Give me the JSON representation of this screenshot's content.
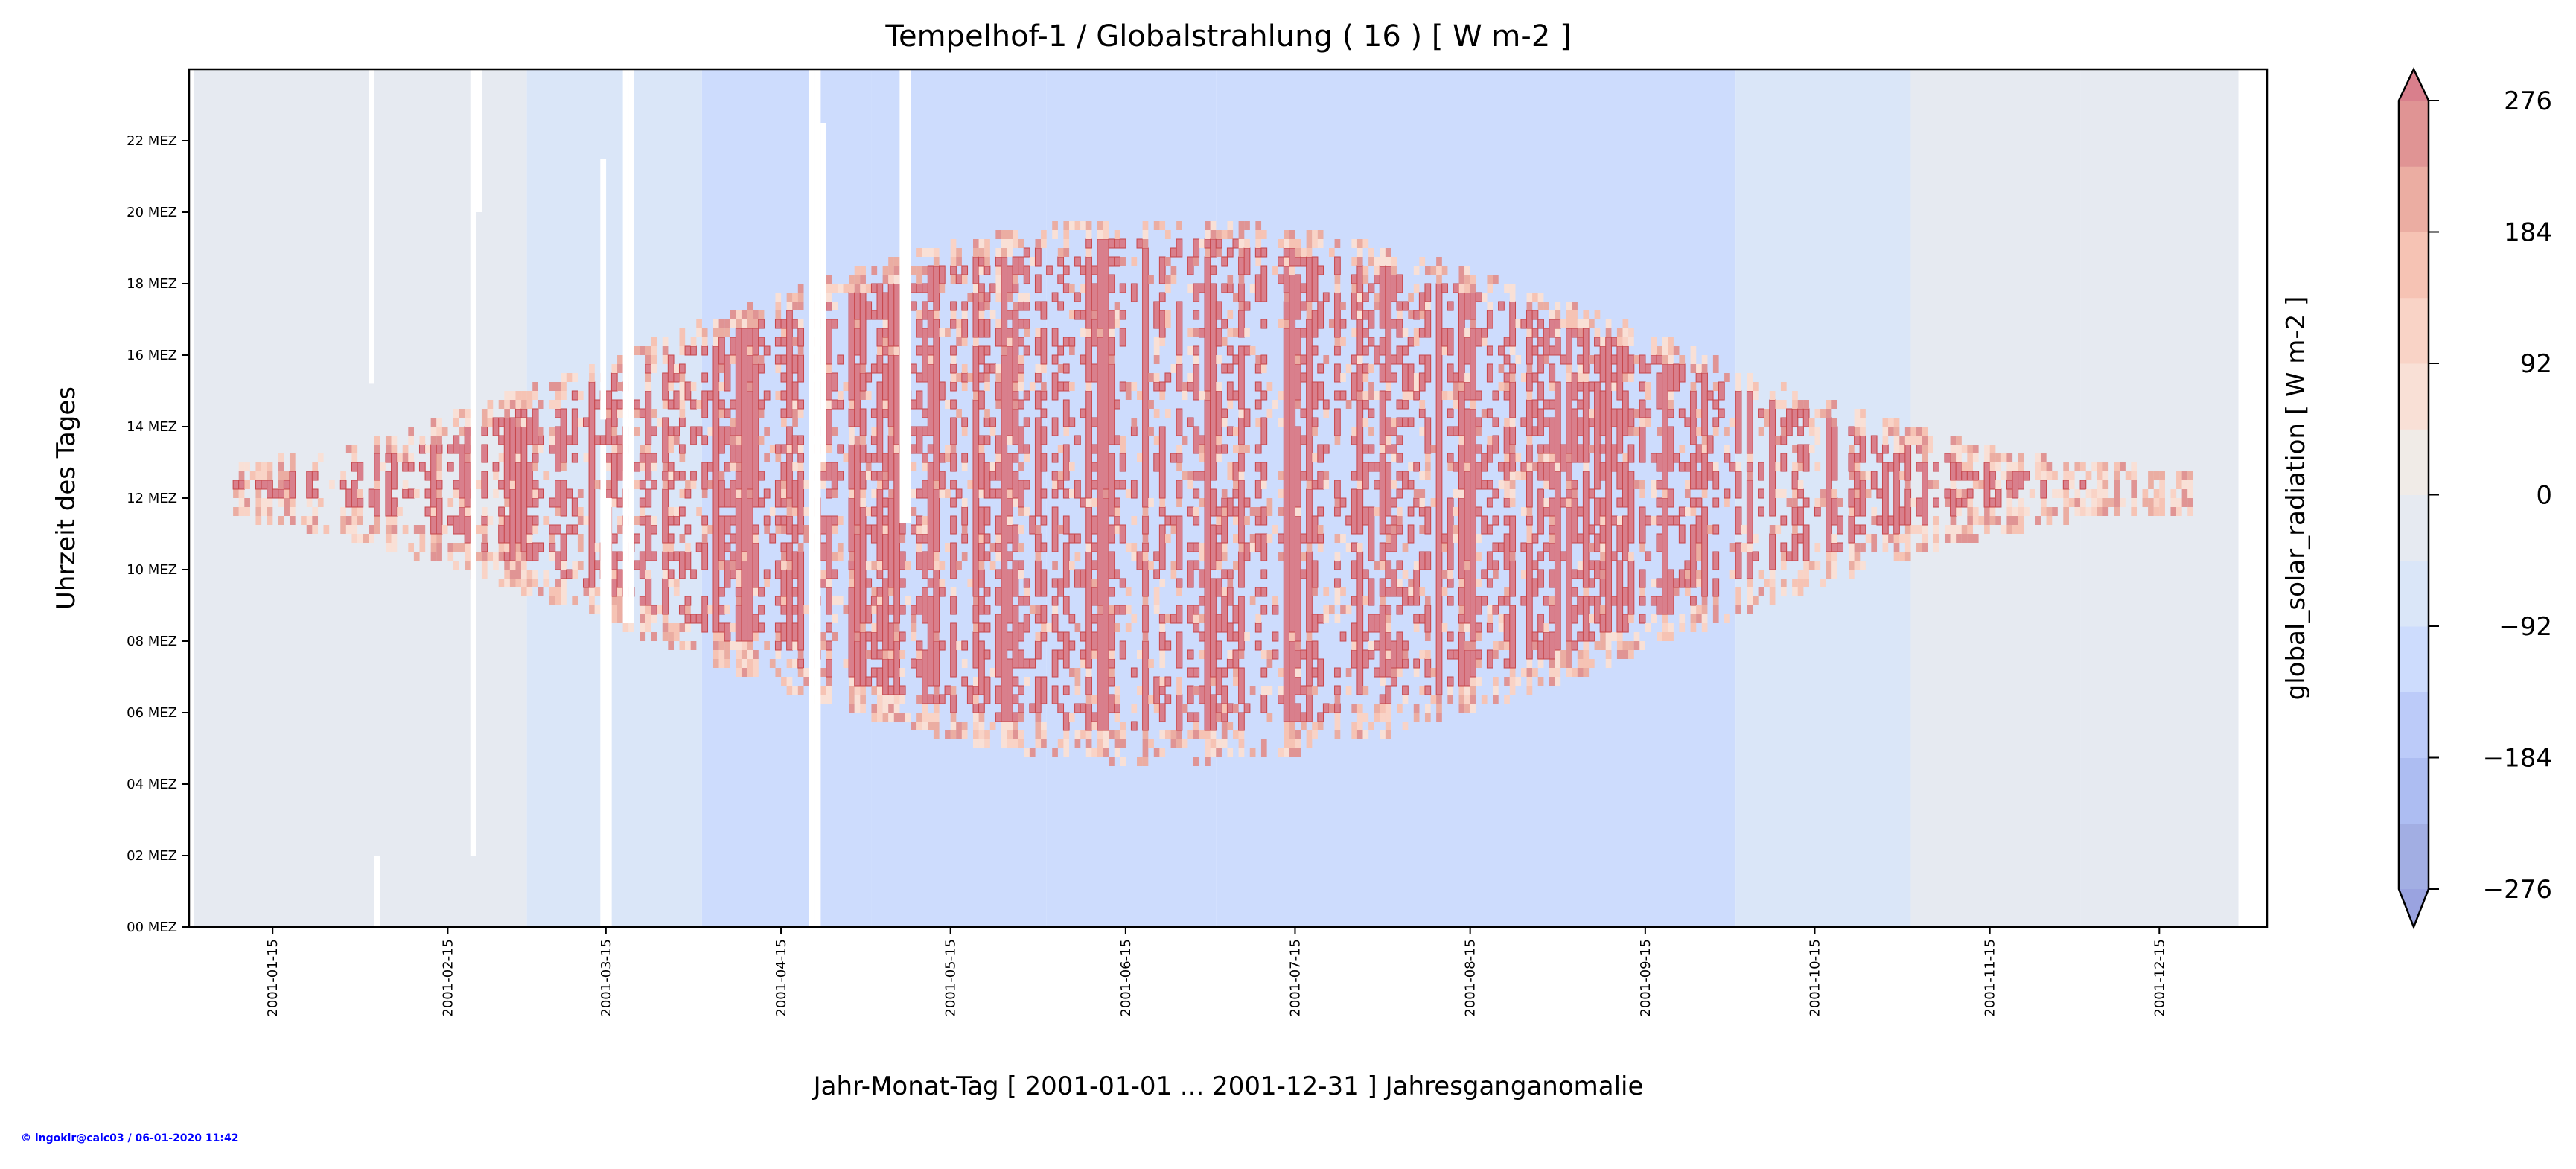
{
  "chart_data": {
    "type": "heatmap",
    "title": "Tempelhof-1 / Globalstrahlung ( 16 ) [ W m-2 ]",
    "xlabel": "Jahr-Monat-Tag [ 2001-01-01 ... 2001-12-31 ] Jahresganganomalie",
    "ylabel": "Uhrzeit des Tages",
    "xlim": [
      "2001-01-01",
      "2001-12-31"
    ],
    "ylim": [
      0,
      24
    ],
    "x_ticks": [
      "2001-01-15",
      "2001-02-15",
      "2001-03-15",
      "2001-04-15",
      "2001-05-15",
      "2001-06-15",
      "2001-07-15",
      "2001-08-15",
      "2001-09-15",
      "2001-10-15",
      "2001-11-15",
      "2001-12-15"
    ],
    "x_tick_days": [
      15,
      46,
      74,
      105,
      135,
      166,
      196,
      227,
      258,
      288,
      319,
      349
    ],
    "y_ticks": [
      "00 MEZ",
      "02 MEZ",
      "04 MEZ",
      "06 MEZ",
      "08 MEZ",
      "10 MEZ",
      "12 MEZ",
      "14 MEZ",
      "16 MEZ",
      "18 MEZ",
      "20 MEZ",
      "22 MEZ"
    ],
    "y_tick_hours": [
      0,
      2,
      4,
      6,
      8,
      10,
      12,
      14,
      16,
      18,
      20,
      22
    ],
    "colorbar": {
      "label": "global_solar_radiation [ W m-2 ]",
      "ticks": [
        "276",
        "184",
        "92",
        "0",
        "−92",
        "−184",
        "−276"
      ],
      "tick_values": [
        276,
        184,
        92,
        0,
        -92,
        -184,
        -276
      ],
      "levels": [
        -276,
        -230,
        -184,
        -138,
        -92,
        -46,
        0,
        46,
        92,
        138,
        184,
        230,
        276
      ],
      "colors": [
        "#a2aee3",
        "#adbdf2",
        "#bccbf9",
        "#cddcfd",
        "#dae6f8",
        "#e6eaf1",
        "#f0ebe7",
        "#f9e0d6",
        "#f9d3c6",
        "#f6c3b4",
        "#ebada2",
        "#e09494"
      ],
      "extend_low_color": "#9aa3e0",
      "extend_high_color": "#d97f8c"
    },
    "monthly_background_level_index": [
      5,
      5,
      4,
      3,
      3,
      3,
      3,
      3,
      3,
      4,
      5,
      5
    ],
    "missing_data_days": [
      {
        "day": 32,
        "from_hour": 15.2,
        "to_hour": 24
      },
      {
        "day": 33,
        "from_hour": 0,
        "to_hour": 2
      },
      {
        "day": 50,
        "from_hour": 2,
        "to_hour": 24
      },
      {
        "day": 51,
        "from_hour": 20,
        "to_hour": 24
      },
      {
        "day": 73,
        "from_hour": 0,
        "to_hour": 13.5
      },
      {
        "day": 74,
        "from_hour": 0,
        "to_hour": 12
      },
      {
        "day": 73,
        "from_hour": 14.2,
        "to_hour": 21.5
      },
      {
        "day": 77,
        "from_hour": 8.5,
        "to_hour": 24
      },
      {
        "day": 78,
        "from_hour": 8.5,
        "to_hour": 24
      },
      {
        "day": 110,
        "from_hour": 0,
        "to_hour": 24
      },
      {
        "day": 111,
        "from_hour": 0,
        "to_hour": 24
      },
      {
        "day": 112,
        "from_hour": 13,
        "to_hour": 22.5
      },
      {
        "day": 126,
        "from_hour": 11.3,
        "to_hour": 24
      },
      {
        "day": 127,
        "from_hour": 11.3,
        "to_hour": 24
      }
    ],
    "data_end_day": 362
  },
  "footer": {
    "credit": "© ingokir@calc03 / 06-01-2020 11:42",
    "credit_color": "#0000ff"
  }
}
